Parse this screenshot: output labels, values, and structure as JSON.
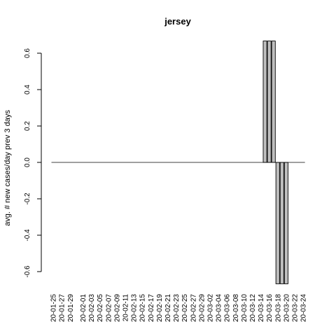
{
  "chart_data": {
    "type": "bar",
    "title": "jersey",
    "xlabel": "",
    "ylabel": "avg. # new cases/day prev  3  days",
    "ylim": [
      -0.6,
      0.6
    ],
    "yticks": [
      "-0.6",
      "-0.4",
      "-0.2",
      "0.0",
      "0.2",
      "0.4",
      "0.6"
    ],
    "grid": false,
    "legend": "none",
    "bar_color": "#bebebe",
    "categories": [
      "20-01-25",
      "20-01-26",
      "20-01-27",
      "20-01-28",
      "20-01-29",
      "20-01-30",
      "20-01-31",
      "20-02-01",
      "20-02-02",
      "20-02-03",
      "20-02-04",
      "20-02-05",
      "20-02-06",
      "20-02-07",
      "20-02-08",
      "20-02-09",
      "20-02-10",
      "20-02-11",
      "20-02-12",
      "20-02-13",
      "20-02-14",
      "20-02-15",
      "20-02-16",
      "20-02-17",
      "20-02-18",
      "20-02-19",
      "20-02-20",
      "20-02-21",
      "20-02-22",
      "20-02-23",
      "20-02-24",
      "20-02-25",
      "20-02-26",
      "20-02-27",
      "20-02-28",
      "20-02-29",
      "20-03-01",
      "20-03-02",
      "20-03-03",
      "20-03-04",
      "20-03-05",
      "20-03-06",
      "20-03-07",
      "20-03-08",
      "20-03-09",
      "20-03-10",
      "20-03-11",
      "20-03-12",
      "20-03-13",
      "20-03-14",
      "20-03-15",
      "20-03-16",
      "20-03-17",
      "20-03-18",
      "20-03-19",
      "20-03-20",
      "20-03-21",
      "20-03-22",
      "20-03-23",
      "20-03-24"
    ],
    "values": [
      0,
      0,
      0,
      0,
      0,
      0,
      0,
      0,
      0,
      0,
      0,
      0,
      0,
      0,
      0,
      0,
      0,
      0,
      0,
      0,
      0,
      0,
      0,
      0,
      0,
      0,
      0,
      0,
      0,
      0,
      0,
      0,
      0,
      0,
      0,
      0,
      0,
      0,
      0,
      0,
      0,
      0,
      0,
      0,
      0,
      0,
      0,
      0,
      0,
      0,
      0.667,
      0.667,
      0.667,
      -0.667,
      -0.667,
      -0.667,
      0,
      0,
      0,
      0
    ],
    "visible_x_tick_labels": [
      "20-01-25",
      "20-01-27",
      "20-01-29",
      "20-02-01",
      "20-02-03",
      "20-02-05",
      "20-02-07",
      "20-02-09",
      "20-02-11",
      "20-02-13",
      "20-02-15",
      "20-02-17",
      "20-02-19",
      "20-02-21",
      "20-02-23",
      "20-02-25",
      "20-02-27",
      "20-02-29",
      "20-03-02",
      "20-03-04",
      "20-03-06",
      "20-03-08",
      "20-03-10",
      "20-03-12",
      "20-03-14",
      "20-03-16",
      "20-03-18",
      "20-03-20",
      "20-03-22",
      "20-03-24"
    ]
  }
}
